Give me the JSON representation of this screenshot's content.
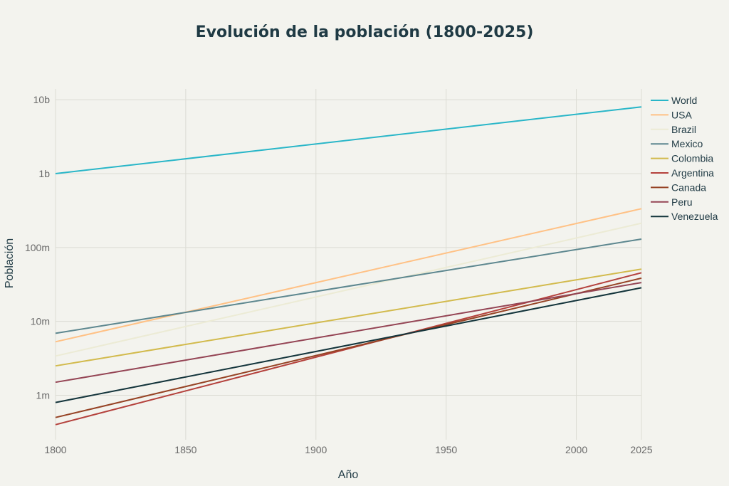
{
  "chart_data": {
    "type": "line",
    "title": "Evolución de la población (1800-2025)",
    "xlabel": "Año",
    "ylabel": "Población",
    "x": [
      1800,
      2025
    ],
    "xlim": [
      1800,
      2025
    ],
    "x_ticks": [
      1800,
      1850,
      1900,
      1950,
      2000,
      2025
    ],
    "yscale": "log",
    "ylim": [
      250000,
      14000000000
    ],
    "y_ticks": [
      {
        "value": 1000000,
        "label": "1m"
      },
      {
        "value": 10000000,
        "label": "10m"
      },
      {
        "value": 100000000,
        "label": "100m"
      },
      {
        "value": 1000000000,
        "label": "1b"
      },
      {
        "value": 10000000000,
        "label": "10b"
      }
    ],
    "grid": true,
    "legend_position": "right",
    "series": [
      {
        "name": "World",
        "color": "#29b6c8",
        "values": [
          1000000000,
          8000000000
        ]
      },
      {
        "name": "USA",
        "color": "#ffc185",
        "values": [
          5300000,
          335000000
        ]
      },
      {
        "name": "Brazil",
        "color": "#ecebd5",
        "values": [
          3400000,
          213000000
        ]
      },
      {
        "name": "Mexico",
        "color": "#5d878f",
        "values": [
          6900000,
          130000000
        ]
      },
      {
        "name": "Colombia",
        "color": "#d2ba4c",
        "values": [
          2500000,
          51000000
        ]
      },
      {
        "name": "Argentina",
        "color": "#b4413c",
        "values": [
          400000,
          45500000
        ]
      },
      {
        "name": "Canada",
        "color": "#964325",
        "values": [
          500000,
          38500000
        ]
      },
      {
        "name": "Peru",
        "color": "#944454",
        "values": [
          1500000,
          33500000
        ]
      },
      {
        "name": "Venezuela",
        "color": "#13343b",
        "values": [
          800000,
          28500000
        ]
      }
    ]
  }
}
